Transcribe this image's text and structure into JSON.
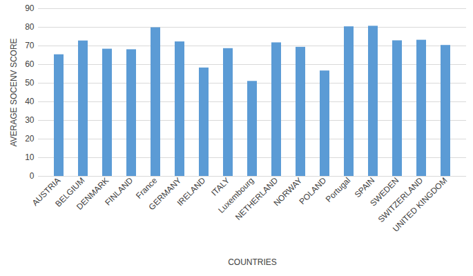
{
  "chart_data": {
    "type": "bar",
    "x_label": "COUNTRIES",
    "y_label": "AVERAGE SOCENV SCORE",
    "categories": [
      "AUSTRIA",
      "BELGIUM",
      "DENMARK",
      "FINLAND",
      "France",
      "GERMANY",
      "IRELAND",
      "ITALY",
      "Luxembourg",
      "NETHERLAND",
      "NORWAY",
      "POLAND",
      "Portugal",
      "SPAIN",
      "SWEDEN",
      "SWITZERLAND",
      "UNITED KINGDOM"
    ],
    "values": [
      65.3,
      72.7,
      68.3,
      68.0,
      79.8,
      72.2,
      58.2,
      68.6,
      51.0,
      71.7,
      69.3,
      56.6,
      80.3,
      80.6,
      72.8,
      73.1,
      70.3
    ],
    "color": "#5b9bd5",
    "ylim": [
      0,
      90
    ],
    "yticks": [
      0,
      10,
      20,
      30,
      40,
      50,
      60,
      70,
      80,
      90
    ],
    "grid": true
  }
}
